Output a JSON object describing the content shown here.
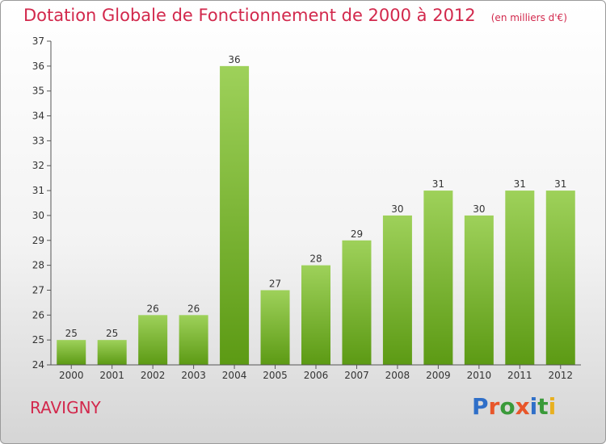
{
  "header": {
    "title": "Dotation Globale de Fonctionnement de 2000 à 2012",
    "unit": "(en milliers d'€)"
  },
  "commune": "RAVIGNY",
  "logo": {
    "text": "Proxiti",
    "letter_colors": [
      "#2f6fc8",
      "#e8562a",
      "#3a9a3a",
      "#e8562a",
      "#2f6fc8",
      "#3a9a3a",
      "#e8b020"
    ]
  },
  "colors": {
    "title": "#d2284c",
    "bar_top": "#9ed15a",
    "bar_bottom": "#5c9a14"
  },
  "chart_data": {
    "type": "bar",
    "title": "Dotation Globale de Fonctionnement de 2000 à 2012",
    "subtitle": "(en milliers d'€)",
    "categories": [
      "2000",
      "2001",
      "2002",
      "2003",
      "2004",
      "2005",
      "2006",
      "2007",
      "2008",
      "2009",
      "2010",
      "2011",
      "2012"
    ],
    "values": [
      25,
      25,
      26,
      26,
      36,
      27,
      28,
      29,
      30,
      31,
      30,
      31,
      31
    ],
    "ylim": [
      24,
      37
    ],
    "yticks": [
      24,
      25,
      26,
      27,
      28,
      29,
      30,
      31,
      32,
      33,
      34,
      35,
      36,
      37
    ],
    "grid": false,
    "legend": "none"
  }
}
